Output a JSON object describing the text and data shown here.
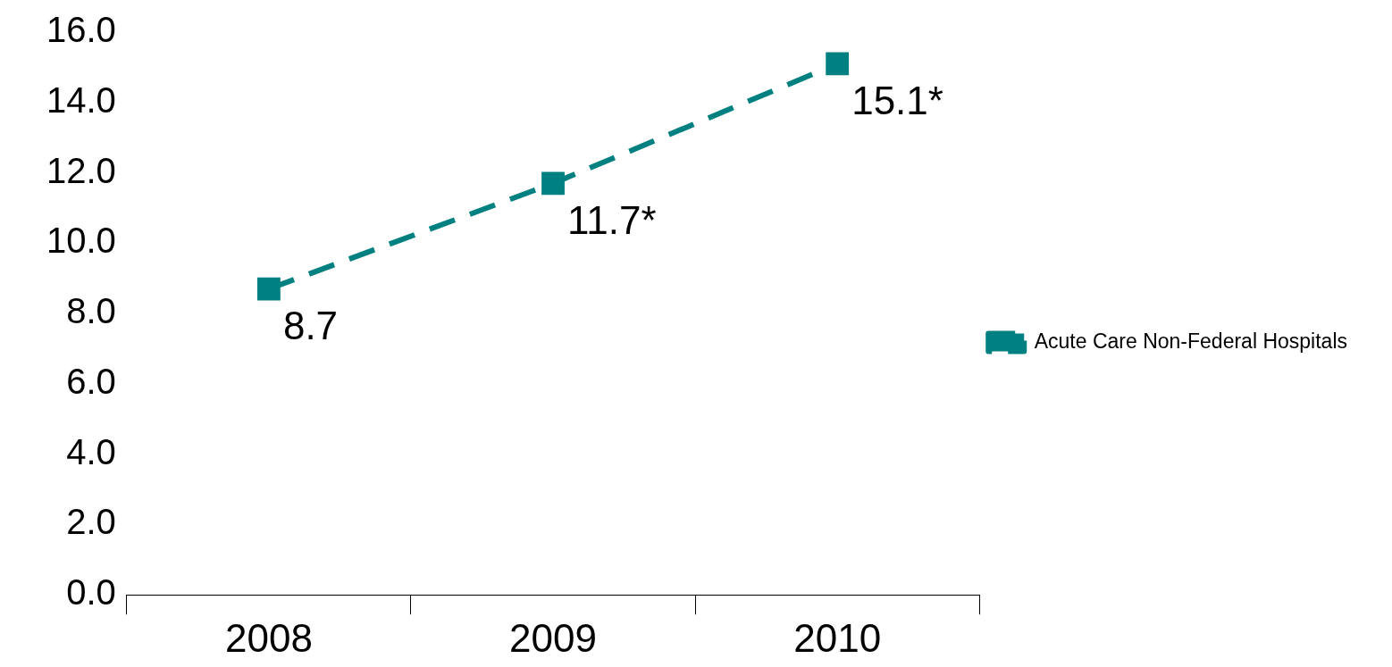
{
  "chart_data": {
    "type": "line",
    "categories": [
      "2008",
      "2009",
      "2010"
    ],
    "series": [
      {
        "name": "Acute Care Non-Federal Hospitals",
        "color": "#008080",
        "values": [
          8.7,
          11.7,
          15.1
        ],
        "value_labels": [
          "8.7",
          "11.7*",
          "15.1*"
        ]
      }
    ],
    "ylim": [
      0,
      16
    ],
    "yticks": [
      {
        "value": 0,
        "label": "0.0"
      },
      {
        "value": 2,
        "label": "2.0"
      },
      {
        "value": 4,
        "label": "4.0"
      },
      {
        "value": 6,
        "label": "6.0"
      },
      {
        "value": 8,
        "label": "8.0"
      },
      {
        "value": 10,
        "label": "10.0"
      },
      {
        "value": 12,
        "label": "12.0"
      },
      {
        "value": 14,
        "label": "14.0"
      },
      {
        "value": 16,
        "label": "16.0"
      }
    ],
    "grid": false,
    "legend": "right",
    "marker": "square",
    "line_style": "dashed"
  }
}
